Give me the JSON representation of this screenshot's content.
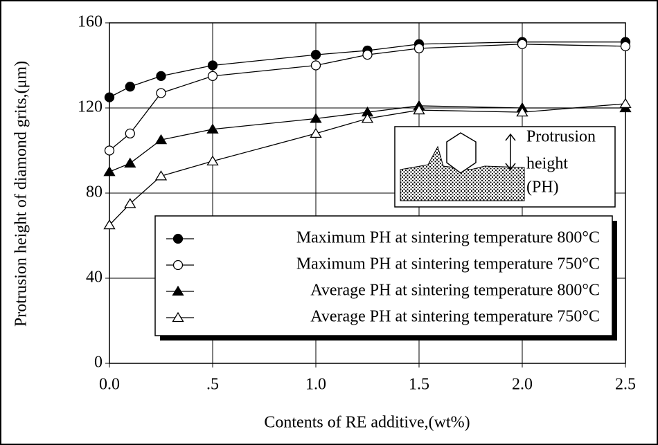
{
  "chart_data": {
    "type": "line",
    "x_label": "Contents of RE additive,(wt%)",
    "y_label": "Protrusion height of diamond grits,(μm)",
    "x": [
      0,
      0.1,
      0.25,
      0.5,
      1.0,
      1.25,
      1.5,
      2.0,
      2.5
    ],
    "series": [
      {
        "name": "Maximum PH at sintering temperature 800°C",
        "color": "#000000",
        "marker": "circle",
        "filled": true,
        "values": [
          125,
          130,
          135,
          140,
          145,
          147,
          150,
          151,
          151
        ]
      },
      {
        "name": "Maximum PH at sintering temperature 750°C",
        "color": "#000000",
        "marker": "circle",
        "filled": false,
        "values": [
          100,
          108,
          127,
          135,
          140,
          145,
          148,
          150,
          149
        ]
      },
      {
        "name": "Average PH at sintering temperature 800°C",
        "color": "#000000",
        "marker": "triangle",
        "filled": true,
        "values": [
          90,
          94,
          105,
          110,
          115,
          118,
          121,
          120,
          120
        ]
      },
      {
        "name": "Average PH at sintering temperature 750°C",
        "color": "#000000",
        "marker": "triangle",
        "filled": false,
        "values": [
          65,
          75,
          88,
          95,
          108,
          115,
          119,
          118,
          122
        ]
      }
    ],
    "xlim": [
      0,
      2.5
    ],
    "xticks": [
      {
        "value": 0,
        "label": "0.0"
      },
      {
        "value": 0.5,
        "label": ".5"
      },
      {
        "value": 1.0,
        "label": "1.0"
      },
      1.5,
      {
        "value": 2.0,
        "label": "2.0"
      },
      2.5
    ],
    "ylim": [
      0,
      160
    ],
    "yticks": [
      0,
      40,
      80,
      120,
      160
    ],
    "grid": true,
    "inset_labels": [
      "Protrusion",
      "height",
      "(PH)"
    ]
  }
}
